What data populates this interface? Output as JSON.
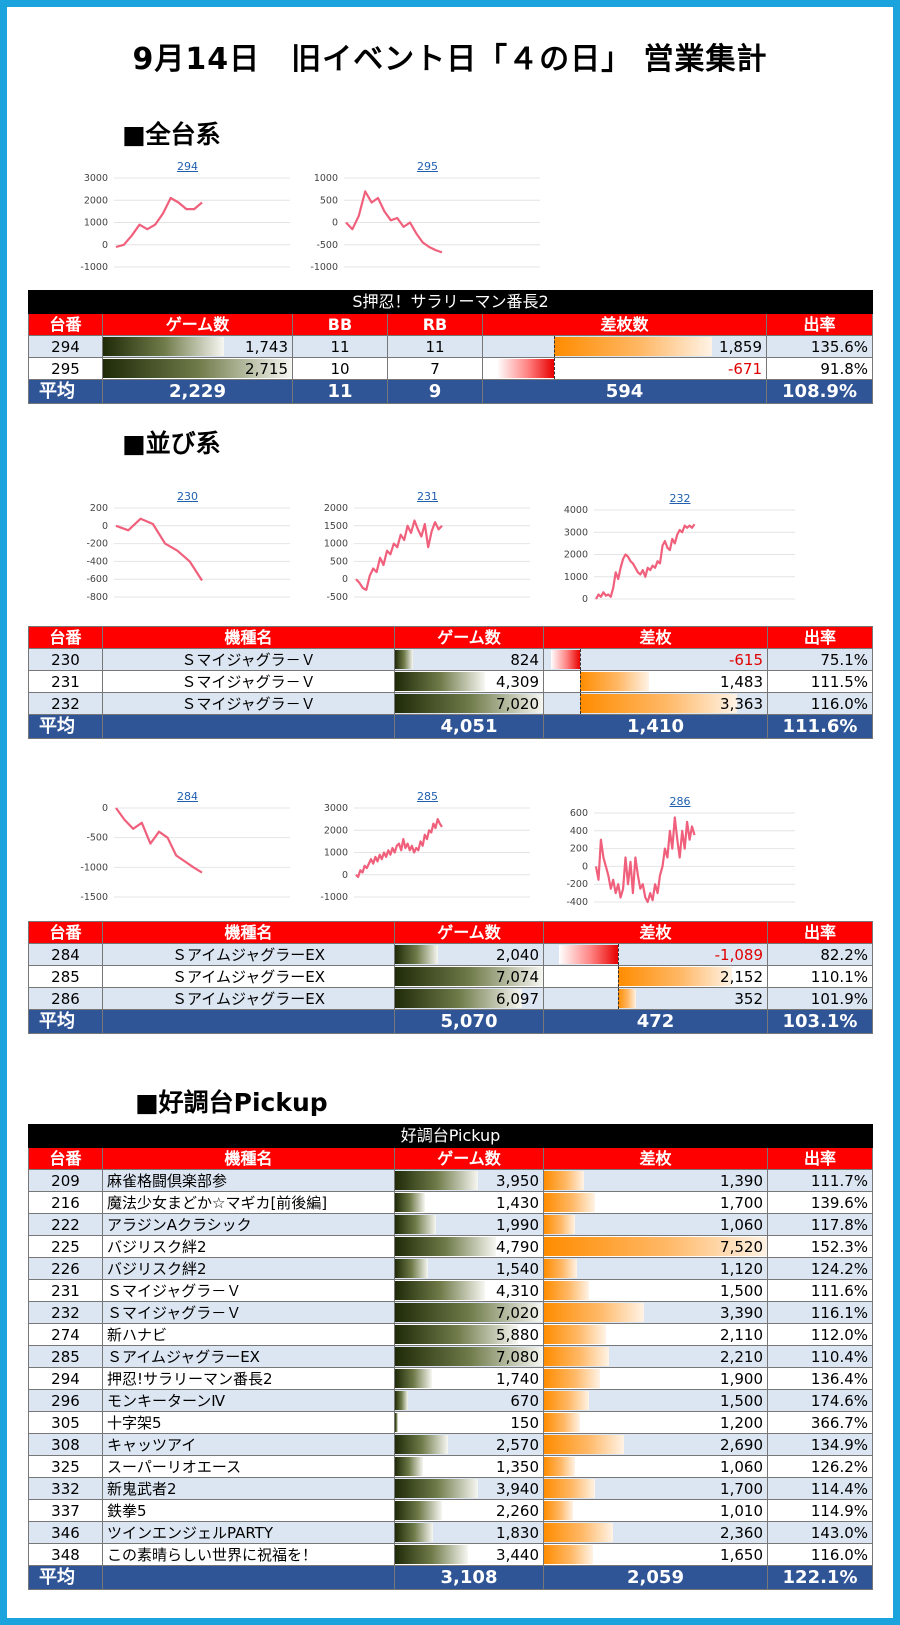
{
  "title": "9月14日　旧イベント日「４の日」 営業集計",
  "sections": {
    "all": "■全台系",
    "row": "■並び系",
    "pickup": "■好調台Pickup"
  },
  "colors": {
    "header": "#ff0000",
    "avg": "#2f5597",
    "line": "#f0607c",
    "frame": "#1aa3dc"
  },
  "charts": [
    {
      "id": "294",
      "yticks": [
        3000,
        2000,
        1000,
        0,
        -1000
      ],
      "ylim": [
        -1000,
        3000
      ],
      "y": [
        -100,
        0,
        400,
        900,
        700,
        900,
        1400,
        2100,
        1900,
        1600,
        1600,
        1900
      ]
    },
    {
      "id": "295",
      "yticks": [
        1000,
        500,
        0,
        -500,
        -1000
      ],
      "ylim": [
        -1000,
        1000
      ],
      "y": [
        0,
        -150,
        150,
        700,
        450,
        550,
        250,
        50,
        100,
        -100,
        0,
        -250,
        -450,
        -550,
        -620,
        -671
      ]
    },
    {
      "id": "230",
      "yticks": [
        200,
        0,
        -200,
        -400,
        -600,
        -800
      ],
      "ylim": [
        -800,
        200
      ],
      "y": [
        0,
        -50,
        80,
        20,
        -200,
        -280,
        -400,
        -615
      ]
    },
    {
      "id": "231",
      "yticks": [
        2000,
        1500,
        1000,
        500,
        0,
        -500
      ],
      "ylim": [
        -500,
        2000
      ],
      "y": [
        0,
        -100,
        -250,
        -300,
        100,
        300,
        200,
        600,
        400,
        800,
        700,
        1000,
        900,
        1250,
        1100,
        1500,
        1300,
        1650,
        1400,
        1200,
        1550,
        900,
        1350,
        1600,
        1400,
        1500
      ]
    },
    {
      "id": "232",
      "yticks": [
        4000,
        3000,
        2000,
        1000,
        0
      ],
      "ylim": [
        0,
        4000
      ],
      "y": [
        0,
        200,
        100,
        300,
        150,
        200,
        100,
        500,
        1200,
        900,
        1400,
        1800,
        2000,
        1900,
        1700,
        1600,
        1400,
        1200,
        1100,
        1300,
        1000,
        1400,
        1300,
        1500,
        1400,
        1700,
        1600,
        2400,
        2600,
        2300,
        2200,
        2700,
        2500,
        2900,
        3100,
        3000,
        3300,
        3200,
        3300,
        3200,
        3363
      ]
    },
    {
      "id": "284",
      "yticks": [
        0,
        -500,
        -1000,
        -1500
      ],
      "ylim": [
        -1500,
        0
      ],
      "y": [
        0,
        -200,
        -350,
        -250,
        -600,
        -400,
        -500,
        -800,
        -900,
        -1000,
        -1089
      ]
    },
    {
      "id": "285",
      "yticks": [
        3000,
        2000,
        1000,
        0,
        -1000
      ],
      "ylim": [
        -1000,
        3000
      ],
      "y": [
        0,
        -100,
        200,
        100,
        400,
        300,
        500,
        700,
        500,
        800,
        600,
        900,
        700,
        1000,
        800,
        1100,
        900,
        1200,
        1000,
        1300,
        1400,
        1100,
        1600,
        1200,
        1400,
        1100,
        1300,
        1000,
        1200,
        1100,
        1500,
        1300,
        1800,
        1600,
        2000,
        1900,
        2300,
        2100,
        2500,
        2300,
        2152
      ]
    },
    {
      "id": "286",
      "yticks": [
        600,
        400,
        200,
        0,
        -200,
        -400
      ],
      "ylim": [
        -400,
        600
      ],
      "y": [
        0,
        -150,
        300,
        100,
        0,
        -100,
        -250,
        -150,
        -300,
        -200,
        -350,
        -250,
        100,
        -200,
        50,
        -300,
        100,
        -100,
        -250,
        -200,
        -350,
        -400,
        -300,
        -380,
        -200,
        -300,
        -100,
        0,
        200,
        100,
        400,
        200,
        550,
        300,
        100,
        400,
        200,
        500,
        300,
        450,
        352
      ]
    }
  ],
  "table1": {
    "caption": "S押忍！サラリーマン番長2",
    "headers": [
      "台番",
      "ゲーム数",
      "BB",
      "RB",
      "差枚数",
      "出率"
    ],
    "rows": [
      {
        "no": "294",
        "games": "1,743",
        "gfrac": 0.64,
        "bb": "11",
        "rb": "11",
        "diff": "1,859",
        "dval": 1859,
        "rate": "135.6%"
      },
      {
        "no": "295",
        "games": "2,715",
        "gfrac": 1.0,
        "bb": "10",
        "rb": "7",
        "diff": "-671",
        "dval": -671,
        "rate": "91.8%"
      }
    ],
    "avg": {
      "label": "平均",
      "games": "2,229",
      "bb": "11",
      "rb": "9",
      "diff": "594",
      "rate": "108.9%"
    }
  },
  "table2": {
    "headers": [
      "台番",
      "機種名",
      "ゲーム数",
      "差枚",
      "出率"
    ],
    "rows": [
      {
        "no": "230",
        "model": "Ｓマイジャグラ－Ｖ",
        "games": "824",
        "gfrac": 0.12,
        "diff": "-615",
        "dval": -615,
        "rate": "75.1%"
      },
      {
        "no": "231",
        "model": "Ｓマイジャグラ－Ｖ",
        "games": "4,309",
        "gfrac": 0.61,
        "diff": "1,483",
        "dval": 1483,
        "rate": "111.5%"
      },
      {
        "no": "232",
        "model": "Ｓマイジャグラ－Ｖ",
        "games": "7,020",
        "gfrac": 1.0,
        "diff": "3,363",
        "dval": 3363,
        "rate": "116.0%"
      }
    ],
    "avg": {
      "label": "平均",
      "model": "",
      "games": "4,051",
      "diff": "1,410",
      "rate": "111.6%"
    }
  },
  "table3": {
    "headers": [
      "台番",
      "機種名",
      "ゲーム数",
      "差枚",
      "出率"
    ],
    "rows": [
      {
        "no": "284",
        "model": "ＳアイムジャグラーEX",
        "games": "2,040",
        "gfrac": 0.29,
        "diff": "-1,089",
        "dval": -1089,
        "rate": "82.2%"
      },
      {
        "no": "285",
        "model": "ＳアイムジャグラーEX",
        "games": "7,074",
        "gfrac": 1.0,
        "diff": "2,152",
        "dval": 2152,
        "rate": "110.1%"
      },
      {
        "no": "286",
        "model": "ＳアイムジャグラーEX",
        "games": "6,097",
        "gfrac": 0.86,
        "diff": "352",
        "dval": 352,
        "rate": "101.9%"
      }
    ],
    "avg": {
      "label": "平均",
      "model": "",
      "games": "5,070",
      "diff": "472",
      "rate": "103.1%"
    }
  },
  "table4": {
    "caption": "好調台Pickup",
    "headers": [
      "台番",
      "機種名",
      "ゲーム数",
      "差枚",
      "出率"
    ],
    "rows": [
      {
        "no": "209",
        "model": "麻雀格闘倶楽部参",
        "games": "3,950",
        "gfrac": 0.56,
        "diff": "1,390",
        "dfrac": 0.18,
        "rate": "111.7%"
      },
      {
        "no": "216",
        "model": "魔法少女まどか☆マギカ[前後編]",
        "games": "1,430",
        "gfrac": 0.2,
        "diff": "1,700",
        "dfrac": 0.23,
        "rate": "139.6%"
      },
      {
        "no": "222",
        "model": "アラジンAクラシック",
        "games": "1,990",
        "gfrac": 0.28,
        "diff": "1,060",
        "dfrac": 0.14,
        "rate": "117.8%"
      },
      {
        "no": "225",
        "model": "バジリスク絆2",
        "games": "4,790",
        "gfrac": 0.68,
        "diff": "7,520",
        "dfrac": 1.0,
        "rate": "152.3%"
      },
      {
        "no": "226",
        "model": "バジリスク絆2",
        "games": "1,540",
        "gfrac": 0.22,
        "diff": "1,120",
        "dfrac": 0.15,
        "rate": "124.2%"
      },
      {
        "no": "231",
        "model": "Ｓマイジャグラ－Ｖ",
        "games": "4,310",
        "gfrac": 0.61,
        "diff": "1,500",
        "dfrac": 0.2,
        "rate": "111.6%"
      },
      {
        "no": "232",
        "model": "Ｓマイジャグラ－Ｖ",
        "games": "7,020",
        "gfrac": 0.99,
        "diff": "3,390",
        "dfrac": 0.45,
        "rate": "116.1%"
      },
      {
        "no": "274",
        "model": "新ハナビ",
        "games": "5,880",
        "gfrac": 0.83,
        "diff": "2,110",
        "dfrac": 0.28,
        "rate": "112.0%"
      },
      {
        "no": "285",
        "model": "ＳアイムジャグラーEX",
        "games": "7,080",
        "gfrac": 1.0,
        "diff": "2,210",
        "dfrac": 0.29,
        "rate": "110.4%"
      },
      {
        "no": "294",
        "model": "押忍!サラリーマン番長2",
        "games": "1,740",
        "gfrac": 0.25,
        "diff": "1,900",
        "dfrac": 0.25,
        "rate": "136.4%"
      },
      {
        "no": "296",
        "model": "モンキーターンⅣ",
        "games": "670",
        "gfrac": 0.09,
        "diff": "1,500",
        "dfrac": 0.2,
        "rate": "174.6%"
      },
      {
        "no": "305",
        "model": "十字架5",
        "games": "150",
        "gfrac": 0.02,
        "diff": "1,200",
        "dfrac": 0.16,
        "rate": "366.7%"
      },
      {
        "no": "308",
        "model": "キャッツアイ",
        "games": "2,570",
        "gfrac": 0.36,
        "diff": "2,690",
        "dfrac": 0.36,
        "rate": "134.9%"
      },
      {
        "no": "325",
        "model": "スーパーリオエース",
        "games": "1,350",
        "gfrac": 0.19,
        "diff": "1,060",
        "dfrac": 0.14,
        "rate": "126.2%"
      },
      {
        "no": "332",
        "model": "新鬼武者2",
        "games": "3,940",
        "gfrac": 0.56,
        "diff": "1,700",
        "dfrac": 0.23,
        "rate": "114.4%"
      },
      {
        "no": "337",
        "model": "鉄拳5",
        "games": "2,260",
        "gfrac": 0.32,
        "diff": "1,010",
        "dfrac": 0.13,
        "rate": "114.9%"
      },
      {
        "no": "346",
        "model": "ツインエンジェルPARTY",
        "games": "1,830",
        "gfrac": 0.26,
        "diff": "2,360",
        "dfrac": 0.31,
        "rate": "143.0%"
      },
      {
        "no": "348",
        "model": "この素晴らしい世界に祝福を！",
        "games": "3,440",
        "gfrac": 0.49,
        "diff": "1,650",
        "dfrac": 0.22,
        "rate": "116.0%"
      }
    ],
    "avg": {
      "label": "平均",
      "model": "",
      "games": "3,108",
      "diff": "2,059",
      "rate": "122.1%"
    }
  }
}
